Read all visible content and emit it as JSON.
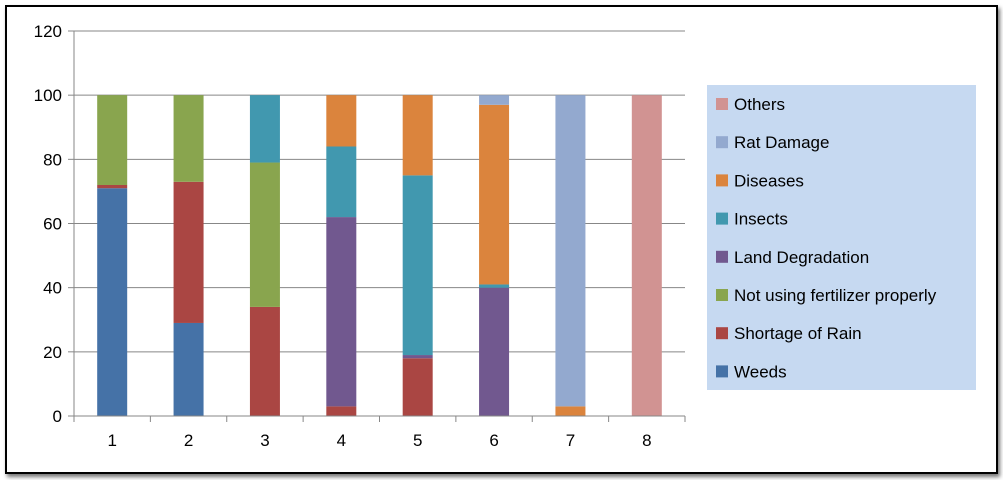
{
  "chart_data": {
    "type": "bar",
    "stacked": true,
    "title": "",
    "xlabel": "",
    "ylabel": "",
    "categories": [
      "1",
      "2",
      "3",
      "4",
      "5",
      "6",
      "7",
      "8"
    ],
    "ylim": [
      0,
      120
    ],
    "yticks": [
      "0",
      "20",
      "40",
      "60",
      "80",
      "100",
      "120"
    ],
    "grid": true,
    "legend_position": "right",
    "series": [
      {
        "name": "Weeds",
        "color": "#4572A7",
        "values": [
          71,
          29,
          0,
          0,
          0,
          0,
          0,
          0
        ]
      },
      {
        "name": "Shortage of Rain",
        "color": "#AA4643",
        "values": [
          1,
          44,
          34,
          3,
          18,
          0,
          0,
          0
        ]
      },
      {
        "name": "Not using fertilizer properly",
        "color": "#89A54E",
        "values": [
          28,
          27,
          45,
          0,
          0,
          0,
          0,
          0
        ]
      },
      {
        "name": "Land Degradation",
        "color": "#71588F",
        "values": [
          0,
          0,
          0,
          59,
          1,
          40,
          0,
          0
        ]
      },
      {
        "name": "Insects",
        "color": "#4198AF",
        "values": [
          0,
          0,
          21,
          22,
          56,
          1,
          0,
          0
        ]
      },
      {
        "name": "Diseases",
        "color": "#DB843D",
        "values": [
          0,
          0,
          0,
          16,
          25,
          56,
          3,
          0
        ]
      },
      {
        "name": "Rat Damage",
        "color": "#93A9CF",
        "values": [
          0,
          0,
          0,
          0,
          0,
          3,
          97,
          0
        ]
      },
      {
        "name": "Others",
        "color": "#D19392",
        "values": [
          0,
          0,
          0,
          0,
          0,
          0,
          0,
          100
        ]
      }
    ]
  },
  "legend": {
    "background": "#C6D9F1",
    "order": [
      "Others",
      "Rat Damage",
      "Diseases",
      "Insects",
      "Land Degradation",
      "Not using fertilizer properly",
      "Shortage of Rain",
      "Weeds"
    ]
  }
}
